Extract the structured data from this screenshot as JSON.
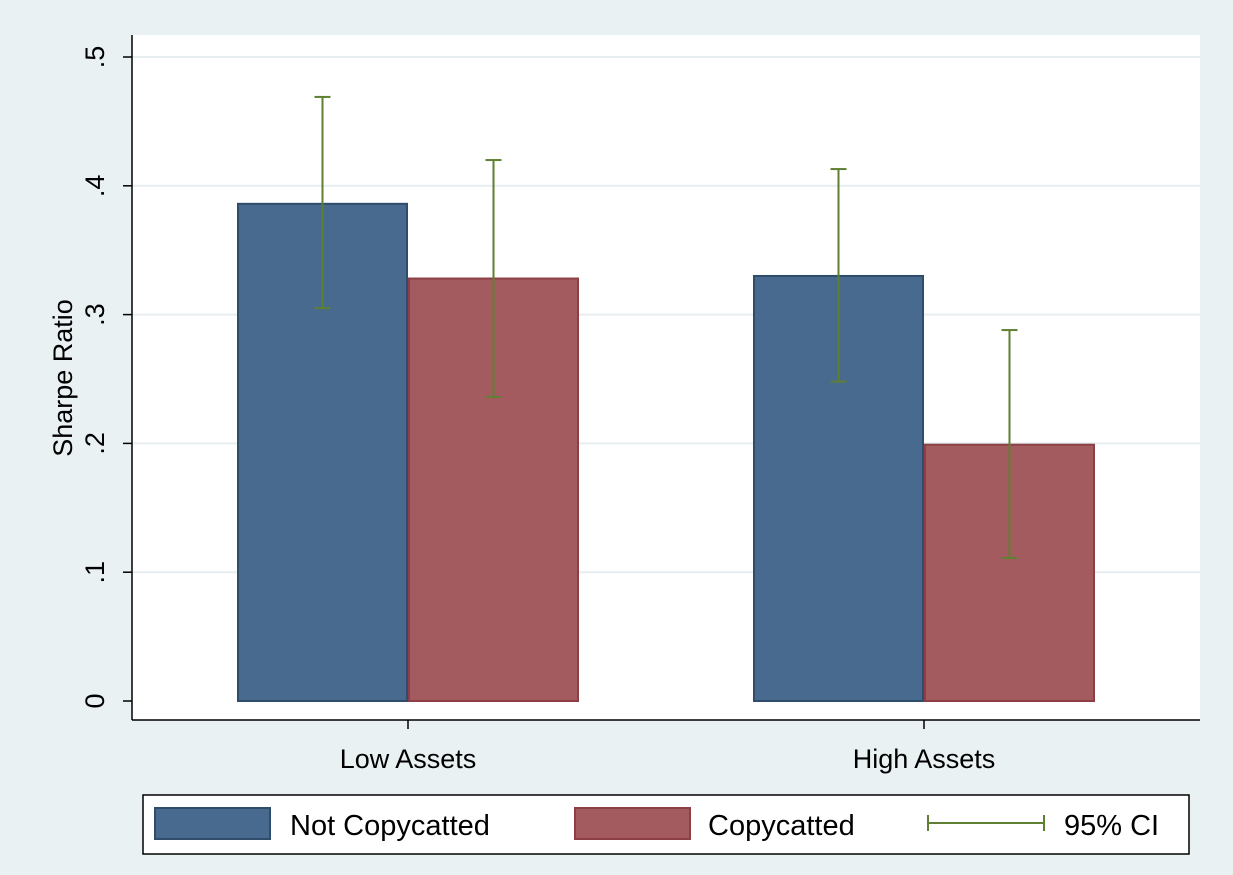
{
  "chart_data": {
    "type": "bar",
    "categories": [
      "Low Assets",
      "High Assets"
    ],
    "series": [
      {
        "name": "Not Copycatted",
        "color": "#476a8e",
        "values": [
          0.386,
          0.33
        ],
        "ci_low": [
          0.305,
          0.248
        ],
        "ci_high": [
          0.469,
          0.413
        ]
      },
      {
        "name": "Copycatted",
        "color": "#a45b60",
        "values": [
          0.328,
          0.199
        ],
        "ci_low": [
          0.236,
          0.111
        ],
        "ci_high": [
          0.42,
          0.288
        ]
      }
    ],
    "ci_label": "95% CI",
    "ci_color": "#5f7f32",
    "xlabel": "",
    "ylabel": "Sharpe Ratio",
    "ylim": [
      0,
      0.5
    ],
    "yticks": [
      0,
      0.1,
      0.2,
      0.3,
      0.4,
      0.5
    ],
    "ytick_labels": [
      "0",
      ".1",
      ".2",
      ".3",
      ".4",
      ".5"
    ],
    "grid": true,
    "legend_position": "bottom",
    "background_color": "#eaf1f3",
    "plot_background_color": "#ffffff"
  }
}
